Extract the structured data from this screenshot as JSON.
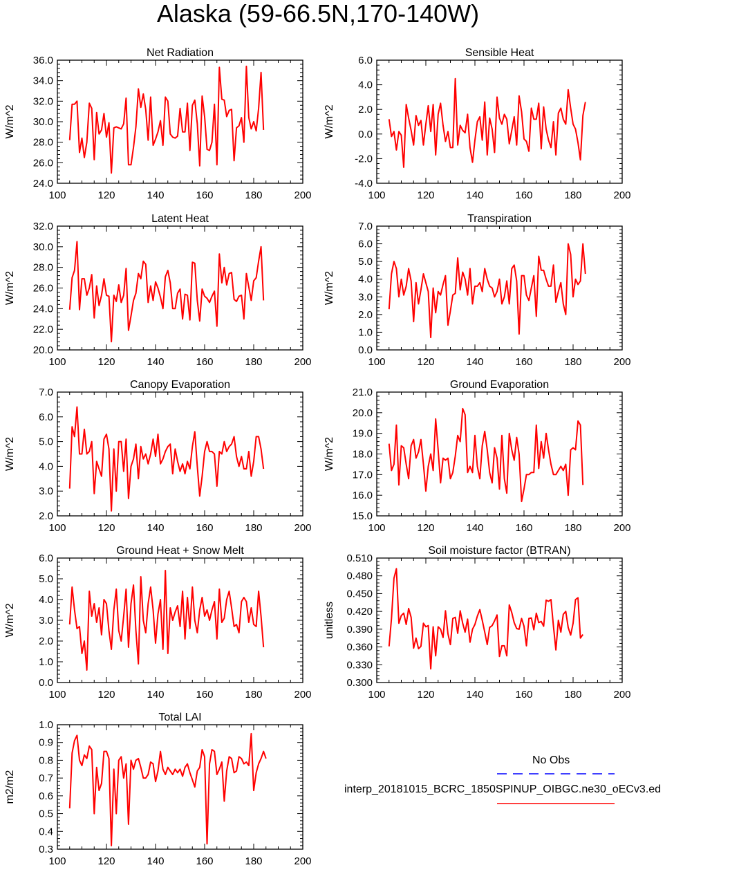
{
  "title": "Alaska (59-66.5N,170-140W)",
  "colors": {
    "model_line": "#ff0000",
    "obs_line": "#0000ff",
    "axis": "#000000"
  },
  "legend": {
    "obs_label": "No Obs",
    "model_label": "interp_20181015_BCRC_1850SPINUP_OIBGC.ne30_oECv3.ed"
  },
  "chart_data": [
    {
      "type": "line",
      "title": "Net Radiation",
      "ylabel": "W/m^2",
      "xlim": [
        100,
        200
      ],
      "ylim": [
        24,
        36
      ],
      "xticks": [
        100,
        120,
        140,
        160,
        180,
        200
      ],
      "yticks": [
        24.0,
        26.0,
        28.0,
        30.0,
        32.0,
        34.0,
        36.0
      ],
      "ydec": 1,
      "x_start": 105,
      "values": [
        28.2,
        31.7,
        31.7,
        32.0,
        27.0,
        28.4,
        26.5,
        28.0,
        31.8,
        31.3,
        26.3,
        30.9,
        28.8,
        29.2,
        30.8,
        28.5,
        29.9,
        25.0,
        29.4,
        29.5,
        29.4,
        29.3,
        29.8,
        32.3,
        25.8,
        25.8,
        27.5,
        29.5,
        33.2,
        31.4,
        32.7,
        31.2,
        28.2,
        32.4,
        27.7,
        28.3,
        29.0,
        30.1,
        27.7,
        32.4,
        32.0,
        28.8,
        28.5,
        28.4,
        28.6,
        31.3,
        29.0,
        29.0,
        31.8,
        27.2,
        31.6,
        32.1,
        29.8,
        25.7,
        32.5,
        30.5,
        27.3,
        27.2,
        28.0,
        31.7,
        25.8,
        35.3,
        32.2,
        32.1,
        30.5,
        31.1,
        31.2,
        26.2,
        29.4,
        29.6,
        30.4,
        28.0,
        35.4,
        30.4,
        29.3,
        30.0,
        29.1,
        31.3,
        34.8,
        29.2
      ]
    },
    {
      "type": "line",
      "title": "Sensible Heat",
      "ylabel": "W/m^2",
      "xlim": [
        100,
        200
      ],
      "ylim": [
        -4,
        6
      ],
      "xticks": [
        100,
        120,
        140,
        160,
        180,
        200
      ],
      "yticks": [
        -4.0,
        -2.0,
        0.0,
        2.0,
        4.0,
        6.0
      ],
      "ydec": 1,
      "x_start": 105,
      "values": [
        1.2,
        -0.2,
        0.2,
        -1.3,
        0.2,
        -0.1,
        -2.7,
        2.4,
        1.3,
        0.3,
        -0.9,
        1.5,
        0.7,
        1.1,
        -0.9,
        0.8,
        2.3,
        0.2,
        2.4,
        -1.7,
        1.6,
        2.5,
        0.7,
        -0.6,
        0.2,
        -1.1,
        -1.1,
        4.5,
        -0.9,
        0.7,
        0.3,
        0.1,
        1.6,
        -1.1,
        -2.3,
        -0.5,
        1.0,
        1.4,
        -0.5,
        2.6,
        -1.7,
        1.3,
        0.4,
        -1.5,
        3.0,
        1.3,
        0.8,
        1.6,
        1.2,
        -0.8,
        0.3,
        1.4,
        -0.9,
        3.1,
        1.8,
        -0.4,
        -0.6,
        -1.4,
        2.1,
        1.2,
        1.2,
        2.5,
        -1.2,
        2.2,
        0.4,
        -0.5,
        -1.1,
        1.0,
        -1.7,
        1.7,
        2.1,
        1.2,
        0.8,
        3.6,
        2.1,
        0.8,
        0.4,
        -0.7,
        -2.1,
        1.5,
        2.6
      ]
    },
    {
      "type": "line",
      "title": "Latent Heat",
      "ylabel": "W/m^2",
      "xlim": [
        100,
        200
      ],
      "ylim": [
        20,
        32
      ],
      "xticks": [
        100,
        120,
        140,
        160,
        180,
        200
      ],
      "yticks": [
        20.0,
        22.0,
        24.0,
        26.0,
        28.0,
        30.0,
        32.0
      ],
      "ydec": 1,
      "x_start": 105,
      "values": [
        23.9,
        27.0,
        27.7,
        30.5,
        23.9,
        26.9,
        26.9,
        25.3,
        26.0,
        27.3,
        23.1,
        26.2,
        24.3,
        25.3,
        26.9,
        25.3,
        25.2,
        20.8,
        25.3,
        24.7,
        26.3,
        24.6,
        25.3,
        27.9,
        21.9,
        23.3,
        24.8,
        25.5,
        27.4,
        26.9,
        28.6,
        28.3,
        24.6,
        26.2,
        24.8,
        26.6,
        26.0,
        25.1,
        24.0,
        27.1,
        27.7,
        26.5,
        24.0,
        24.0,
        25.5,
        25.9,
        23.0,
        25.4,
        25.3,
        22.9,
        28.5,
        28.4,
        24.8,
        22.8,
        25.9,
        25.2,
        25.0,
        24.6,
        25.2,
        25.7,
        22.3,
        29.3,
        26.5,
        28.0,
        26.3,
        27.4,
        27.5,
        24.9,
        24.7,
        25.2,
        25.3,
        23.0,
        27.4,
        26.1,
        24.8,
        26.7,
        27.0,
        28.6,
        30.0,
        24.8
      ]
    },
    {
      "type": "line",
      "title": "Transpiration",
      "ylabel": "W/m^2",
      "xlim": [
        100,
        200
      ],
      "ylim": [
        0,
        7
      ],
      "xticks": [
        100,
        120,
        140,
        160,
        180,
        200
      ],
      "yticks": [
        0.0,
        1.0,
        2.0,
        3.0,
        4.0,
        5.0,
        6.0,
        7.0
      ],
      "ydec": 1,
      "x_start": 105,
      "values": [
        2.3,
        4.3,
        5.0,
        4.6,
        3.0,
        4.0,
        3.1,
        3.6,
        4.6,
        3.9,
        1.6,
        3.8,
        2.6,
        3.4,
        4.3,
        3.8,
        3.3,
        0.7,
        3.5,
        2.1,
        3.3,
        3.1,
        3.7,
        4.2,
        1.4,
        2.2,
        3.1,
        3.2,
        5.2,
        3.4,
        4.4,
        4.0,
        3.1,
        4.6,
        2.6,
        3.6,
        3.6,
        3.8,
        3.3,
        4.6,
        4.0,
        3.6,
        3.5,
        3.0,
        3.3,
        4.0,
        2.6,
        3.0,
        3.9,
        2.6,
        4.6,
        4.8,
        3.9,
        0.9,
        4.2,
        4.2,
        3.1,
        2.8,
        3.5,
        4.2,
        1.9,
        5.3,
        4.5,
        4.5,
        4.0,
        3.6,
        3.6,
        4.8,
        2.7,
        3.3,
        3.8,
        2.6,
        2.0,
        6.0,
        5.4,
        3.0,
        4.0,
        3.7,
        3.9,
        6.0,
        4.3
      ]
    },
    {
      "type": "line",
      "title": "Canopy Evaporation",
      "ylabel": "W/m^2",
      "xlim": [
        100,
        200
      ],
      "ylim": [
        2,
        7
      ],
      "xticks": [
        100,
        120,
        140,
        160,
        180,
        200
      ],
      "yticks": [
        2.0,
        3.0,
        4.0,
        5.0,
        6.0,
        7.0
      ],
      "ydec": 1,
      "x_start": 105,
      "values": [
        3.1,
        5.6,
        5.2,
        6.4,
        4.5,
        4.5,
        5.5,
        4.5,
        4.6,
        5.0,
        2.9,
        4.2,
        3.9,
        3.6,
        5.1,
        5.3,
        4.7,
        2.2,
        4.7,
        3.0,
        5.0,
        5.0,
        3.8,
        5.1,
        2.7,
        4.0,
        4.3,
        4.9,
        3.5,
        4.8,
        4.3,
        4.5,
        4.1,
        4.5,
        5.1,
        4.4,
        5.3,
        4.1,
        4.3,
        4.6,
        4.8,
        4.9,
        3.7,
        4.7,
        4.2,
        3.8,
        4.1,
        3.7,
        4.2,
        3.9,
        4.8,
        5.4,
        4.0,
        2.8,
        3.6,
        4.6,
        5.0,
        4.6,
        4.6,
        4.5,
        3.2,
        4.6,
        4.5,
        5.0,
        4.6,
        4.8,
        4.9,
        5.2,
        4.4,
        4.0,
        4.4,
        3.9,
        3.9,
        4.6,
        3.6,
        4.2,
        5.2,
        5.2,
        4.7,
        3.9
      ]
    },
    {
      "type": "line",
      "title": "Ground Evaporation",
      "ylabel": "W/m^2",
      "xlim": [
        100,
        200
      ],
      "ylim": [
        15,
        21
      ],
      "xticks": [
        100,
        120,
        140,
        160,
        180,
        200
      ],
      "yticks": [
        15.0,
        16.0,
        17.0,
        18.0,
        19.0,
        20.0,
        21.0
      ],
      "ydec": 1,
      "x_start": 105,
      "values": [
        18.5,
        17.2,
        17.5,
        19.4,
        16.5,
        18.4,
        18.3,
        17.5,
        16.8,
        18.4,
        18.7,
        17.8,
        18.1,
        18.7,
        17.5,
        16.2,
        17.4,
        18.0,
        17.2,
        19.7,
        18.2,
        16.6,
        17.8,
        17.7,
        17.8,
        16.8,
        17.1,
        17.9,
        18.9,
        18.6,
        20.2,
        19.9,
        17.1,
        17.4,
        17.1,
        18.9,
        17.4,
        16.8,
        18.4,
        19.1,
        18.2,
        17.1,
        16.6,
        18.3,
        17.8,
        16.3,
        18.9,
        16.8,
        16.1,
        19.0,
        18.2,
        17.7,
        18.8,
        18.0,
        15.7,
        16.3,
        17.0,
        17.0,
        17.1,
        17.1,
        19.4,
        17.3,
        18.6,
        17.8,
        19.0,
        18.2,
        17.5,
        17.0,
        17.0,
        17.2,
        17.4,
        17.2,
        17.5,
        16.0,
        18.2,
        18.3,
        18.2,
        19.6,
        19.4,
        16.5
      ]
    },
    {
      "type": "line",
      "title": "Ground Heat + Snow Melt",
      "ylabel": "W/m^2",
      "xlim": [
        100,
        200
      ],
      "ylim": [
        0,
        6
      ],
      "xticks": [
        100,
        120,
        140,
        160,
        180,
        200
      ],
      "yticks": [
        0.0,
        1.0,
        2.0,
        3.0,
        4.0,
        5.0,
        6.0
      ],
      "ydec": 1,
      "x_start": 105,
      "values": [
        2.8,
        4.6,
        3.5,
        2.6,
        2.7,
        1.4,
        2.0,
        0.6,
        4.4,
        3.2,
        3.8,
        2.9,
        3.6,
        2.3,
        4.0,
        3.8,
        2.5,
        1.6,
        3.5,
        4.5,
        2.5,
        2.0,
        3.2,
        4.5,
        1.7,
        3.8,
        4.7,
        2.5,
        0.9,
        5.1,
        3.0,
        2.4,
        3.8,
        4.6,
        3.5,
        1.9,
        3.3,
        4.0,
        1.6,
        5.4,
        1.4,
        3.6,
        3.0,
        3.4,
        3.7,
        2.7,
        4.4,
        2.1,
        4.1,
        2.6,
        4.6,
        3.0,
        2.4,
        3.5,
        4.1,
        3.2,
        3.5,
        3.0,
        3.5,
        3.9,
        2.1,
        4.5,
        2.9,
        3.1,
        4.0,
        4.4,
        3.6,
        2.7,
        2.8,
        2.4,
        3.9,
        4.1,
        3.9,
        2.9,
        3.6,
        2.8,
        2.7,
        4.4,
        3.2,
        1.7
      ]
    },
    {
      "type": "line",
      "title": "Soil moisture factor (BTRAN)",
      "ylabel": "unitless",
      "xlim": [
        100,
        200
      ],
      "ylim": [
        0.3,
        0.51
      ],
      "xticks": [
        100,
        120,
        140,
        160,
        180,
        200
      ],
      "yticks": [
        0.3,
        0.33,
        0.36,
        0.39,
        0.42,
        0.45,
        0.48,
        0.51
      ],
      "ydec": 3,
      "x_start": 105,
      "values": [
        0.361,
        0.408,
        0.476,
        0.492,
        0.4,
        0.413,
        0.417,
        0.398,
        0.425,
        0.41,
        0.358,
        0.375,
        0.357,
        0.361,
        0.4,
        0.394,
        0.396,
        0.323,
        0.394,
        0.345,
        0.394,
        0.39,
        0.376,
        0.421,
        0.382,
        0.364,
        0.408,
        0.41,
        0.383,
        0.421,
        0.4,
        0.385,
        0.407,
        0.368,
        0.39,
        0.398,
        0.412,
        0.423,
        0.405,
        0.385,
        0.364,
        0.393,
        0.396,
        0.404,
        0.414,
        0.344,
        0.362,
        0.362,
        0.345,
        0.431,
        0.418,
        0.401,
        0.391,
        0.39,
        0.408,
        0.395,
        0.362,
        0.408,
        0.409,
        0.389,
        0.417,
        0.401,
        0.403,
        0.395,
        0.439,
        0.437,
        0.44,
        0.395,
        0.355,
        0.405,
        0.385,
        0.415,
        0.42,
        0.393,
        0.38,
        0.4,
        0.44,
        0.443,
        0.375,
        0.381
      ]
    },
    {
      "type": "line",
      "title": "Total LAI",
      "ylabel": "m2/m2",
      "xlim": [
        100,
        200
      ],
      "ylim": [
        0.3,
        1.0
      ],
      "xticks": [
        100,
        120,
        140,
        160,
        180,
        200
      ],
      "yticks": [
        0.3,
        0.4,
        0.5,
        0.6,
        0.7,
        0.8,
        0.9,
        1.0
      ],
      "ydec": 1,
      "x_start": 105,
      "values": [
        0.53,
        0.84,
        0.91,
        0.94,
        0.8,
        0.77,
        0.83,
        0.81,
        0.88,
        0.86,
        0.5,
        0.76,
        0.63,
        0.67,
        0.85,
        0.85,
        0.81,
        0.32,
        0.75,
        0.5,
        0.8,
        0.82,
        0.7,
        0.78,
        0.44,
        0.8,
        0.75,
        0.8,
        0.81,
        0.76,
        0.7,
        0.7,
        0.72,
        0.79,
        0.78,
        0.68,
        0.74,
        0.85,
        0.75,
        0.72,
        0.76,
        0.74,
        0.72,
        0.75,
        0.73,
        0.75,
        0.71,
        0.76,
        0.78,
        0.73,
        0.69,
        0.65,
        0.74,
        0.76,
        0.86,
        0.82,
        0.33,
        0.78,
        0.86,
        0.85,
        0.72,
        0.75,
        0.79,
        0.57,
        0.74,
        0.82,
        0.81,
        0.73,
        0.74,
        0.82,
        0.81,
        0.78,
        0.79,
        0.77,
        0.95,
        0.63,
        0.73,
        0.78,
        0.81,
        0.85,
        0.81
      ]
    }
  ]
}
